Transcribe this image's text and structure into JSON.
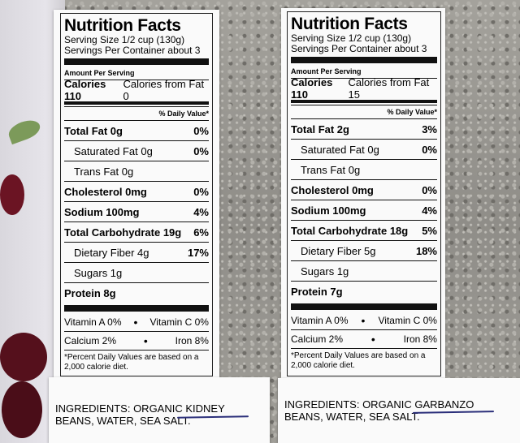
{
  "left_label": {
    "title": "Nutrition Facts",
    "serving_size": "Serving Size 1/2 cup (130g)",
    "servings": "Servings Per Container about 3",
    "amount_per_serving": "Amount Per Serving",
    "calories": "Calories 110",
    "calories_fat": "Calories from Fat 0",
    "dv_header": "% Daily Value*",
    "rows": [
      {
        "label": "Total Fat 0g",
        "dv": "0%"
      },
      {
        "label": "Saturated Fat 0g",
        "dv": "0%"
      },
      {
        "label": "Trans Fat 0g",
        "dv": ""
      },
      {
        "label": "Cholesterol 0mg",
        "dv": "0%"
      },
      {
        "label": "Sodium 100mg",
        "dv": "4%"
      },
      {
        "label": "Total Carbohydrate 19g",
        "dv": "6%"
      },
      {
        "label": "Dietary Fiber 4g",
        "dv": "17%"
      },
      {
        "label": "Sugars 1g",
        "dv": ""
      },
      {
        "label": "Protein 8g",
        "dv": ""
      }
    ],
    "vitamin_a": "Vitamin A 0%",
    "vitamin_c": "Vitamin C 0%",
    "calcium": "Calcium 2%",
    "iron": "Iron 8%",
    "footnote": "*Percent Daily Values are based on a 2,000 calorie diet.",
    "ingredients": "INGREDIENTS: ORGANIC KIDNEY BEANS, WATER, SEA SALT."
  },
  "right_label": {
    "title": "Nutrition Facts",
    "serving_size": "Serving Size 1/2 cup (130g)",
    "servings": "Servings Per Container about 3",
    "amount_per_serving": "Amount Per Serving",
    "calories": "Calories 110",
    "calories_fat": "Calories from Fat 15",
    "dv_header": "% Daily Value*",
    "rows": [
      {
        "label": "Total Fat 2g",
        "dv": "3%"
      },
      {
        "label": "Saturated Fat 0g",
        "dv": "0%"
      },
      {
        "label": "Trans Fat 0g",
        "dv": ""
      },
      {
        "label": "Cholesterol 0mg",
        "dv": "0%"
      },
      {
        "label": "Sodium 100mg",
        "dv": "4%"
      },
      {
        "label": "Total Carbohydrate 18g",
        "dv": "5%"
      },
      {
        "label": "Dietary Fiber 5g",
        "dv": "18%"
      },
      {
        "label": "Sugars 1g",
        "dv": ""
      },
      {
        "label": "Protein 7g",
        "dv": ""
      }
    ],
    "vitamin_a": "Vitamin A 0%",
    "vitamin_c": "Vitamin C 0%",
    "calcium": "Calcium 2%",
    "iron": "Iron 8%",
    "footnote": "*Percent Daily Values are based on a 2,000 calorie diet.",
    "ingredients": "INGREDIENTS: ORGANIC GARBANZO BEANS, WATER, SEA SALT."
  }
}
